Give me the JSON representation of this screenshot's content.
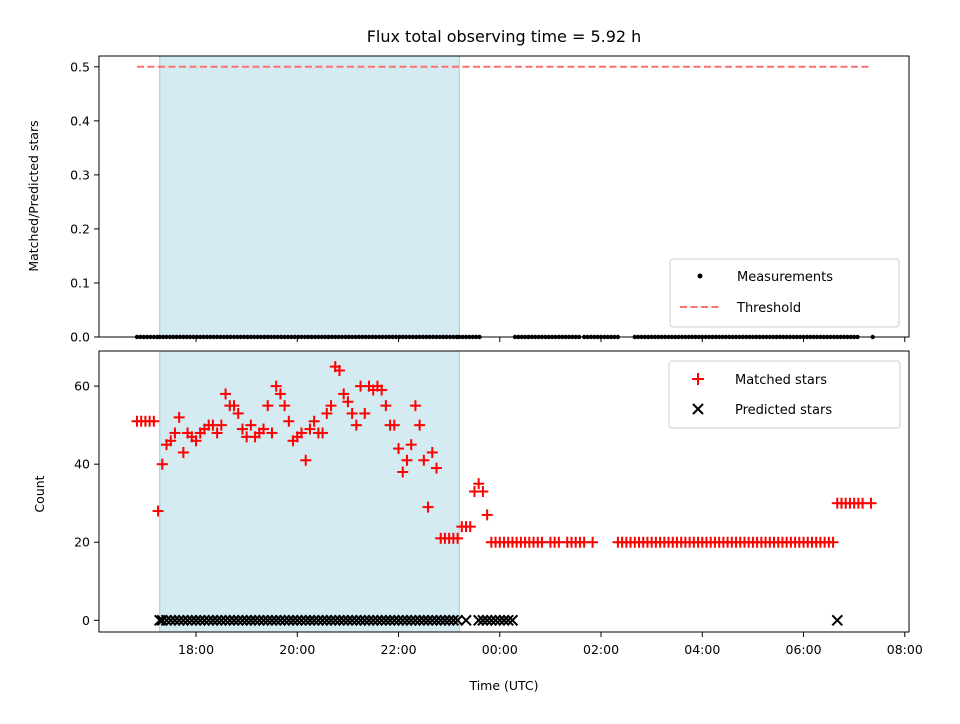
{
  "chart_data": [
    {
      "type": "scatter",
      "title": "Flux total observing time = 5.92 h",
      "xlabel": "",
      "ylabel": "Matched/Predicted stars",
      "ylim": [
        0.0,
        0.52
      ],
      "xlim": [
        "16:05",
        "08:05"
      ],
      "yticks": [
        "0.0",
        "0.1",
        "0.2",
        "0.3",
        "0.4",
        "0.5"
      ],
      "shaded_span": [
        "17:17",
        "23:12"
      ],
      "threshold": 0.5,
      "legend_position": "lower right",
      "legend": [
        "Measurements",
        "Threshold"
      ],
      "series": [
        {
          "name": "Measurements",
          "color": "#000000",
          "marker": "dot",
          "y": 0.0,
          "x_segments": [
            [
              "16:50",
              "17:17"
            ],
            [
              "17:17",
              "23:12"
            ],
            [
              "23:12",
              "23:37"
            ],
            [
              "00:18",
              "01:35"
            ],
            [
              "01:40",
              "02:20"
            ],
            [
              "02:40",
              "06:38"
            ],
            [
              "06:40",
              "07:05"
            ],
            [
              "07:22",
              "07:22"
            ]
          ]
        },
        {
          "name": "Threshold",
          "color": "#ff6f6f",
          "style": "dashed",
          "x": [
            "16:50",
            "07:20"
          ],
          "y": [
            0.5,
            0.5
          ]
        }
      ]
    },
    {
      "type": "scatter",
      "title": "",
      "xlabel": "Time (UTC)",
      "ylabel": "Count",
      "ylim": [
        -3,
        69
      ],
      "yticks": [
        "0",
        "20",
        "40",
        "60"
      ],
      "xticks": [
        "18:00",
        "20:00",
        "22:00",
        "00:00",
        "02:00",
        "04:00",
        "06:00",
        "08:00"
      ],
      "shaded_span": [
        "17:17",
        "23:12"
      ],
      "legend_position": "upper right",
      "legend": [
        "Matched stars",
        "Predicted stars"
      ],
      "series": [
        {
          "name": "Matched stars",
          "color": "#ff0000",
          "marker": "+",
          "points": [
            [
              "16:50",
              51
            ],
            [
              "16:55",
              51
            ],
            [
              "17:00",
              51
            ],
            [
              "17:05",
              51
            ],
            [
              "17:10",
              51
            ],
            [
              "17:15",
              28
            ],
            [
              "17:20",
              40
            ],
            [
              "17:25",
              45
            ],
            [
              "17:30",
              46
            ],
            [
              "17:35",
              48
            ],
            [
              "17:40",
              52
            ],
            [
              "17:45",
              43
            ],
            [
              "17:50",
              48
            ],
            [
              "17:55",
              47
            ],
            [
              "18:00",
              46
            ],
            [
              "18:05",
              48
            ],
            [
              "18:10",
              49
            ],
            [
              "18:15",
              50
            ],
            [
              "18:20",
              50
            ],
            [
              "18:25",
              48
            ],
            [
              "18:30",
              50
            ],
            [
              "18:35",
              58
            ],
            [
              "18:40",
              55
            ],
            [
              "18:45",
              55
            ],
            [
              "18:50",
              53
            ],
            [
              "18:55",
              49
            ],
            [
              "19:00",
              47
            ],
            [
              "19:05",
              50
            ],
            [
              "19:10",
              47
            ],
            [
              "19:15",
              48
            ],
            [
              "19:20",
              49
            ],
            [
              "19:25",
              55
            ],
            [
              "19:30",
              48
            ],
            [
              "19:35",
              60
            ],
            [
              "19:40",
              58
            ],
            [
              "19:45",
              55
            ],
            [
              "19:50",
              51
            ],
            [
              "19:55",
              46
            ],
            [
              "20:00",
              47
            ],
            [
              "20:05",
              48
            ],
            [
              "20:10",
              41
            ],
            [
              "20:15",
              49
            ],
            [
              "20:20",
              51
            ],
            [
              "20:25",
              48
            ],
            [
              "20:30",
              48
            ],
            [
              "20:35",
              53
            ],
            [
              "20:40",
              55
            ],
            [
              "20:45",
              65
            ],
            [
              "20:50",
              64
            ],
            [
              "20:55",
              58
            ],
            [
              "21:00",
              56
            ],
            [
              "21:05",
              53
            ],
            [
              "21:10",
              50
            ],
            [
              "21:15",
              60
            ],
            [
              "21:20",
              53
            ],
            [
              "21:25",
              60
            ],
            [
              "21:30",
              59
            ],
            [
              "21:35",
              60
            ],
            [
              "21:40",
              59
            ],
            [
              "21:45",
              55
            ],
            [
              "21:50",
              50
            ],
            [
              "21:55",
              50
            ],
            [
              "22:00",
              44
            ],
            [
              "22:05",
              38
            ],
            [
              "22:10",
              41
            ],
            [
              "22:15",
              45
            ],
            [
              "22:20",
              55
            ],
            [
              "22:25",
              50
            ],
            [
              "22:30",
              41
            ],
            [
              "22:35",
              29
            ],
            [
              "22:40",
              43
            ],
            [
              "22:45",
              39
            ],
            [
              "22:50",
              21
            ],
            [
              "22:55",
              21
            ],
            [
              "23:00",
              21
            ],
            [
              "23:05",
              21
            ],
            [
              "23:10",
              21
            ],
            [
              "23:15",
              24
            ],
            [
              "23:20",
              24
            ],
            [
              "23:25",
              24
            ],
            [
              "23:30",
              33
            ],
            [
              "23:35",
              35
            ],
            [
              "23:40",
              33
            ],
            [
              "23:45",
              27
            ],
            [
              "23:50",
              20
            ],
            [
              "23:55",
              20
            ],
            [
              "00:00",
              20
            ],
            [
              "00:05",
              20
            ],
            [
              "00:10",
              20
            ],
            [
              "00:15",
              20
            ],
            [
              "00:20",
              20
            ],
            [
              "00:25",
              20
            ],
            [
              "00:30",
              20
            ],
            [
              "00:35",
              20
            ],
            [
              "00:40",
              20
            ],
            [
              "00:45",
              20
            ],
            [
              "00:50",
              20
            ],
            [
              "01:00",
              20
            ],
            [
              "01:05",
              20
            ],
            [
              "01:10",
              20
            ],
            [
              "01:20",
              20
            ],
            [
              "01:25",
              20
            ],
            [
              "01:30",
              20
            ],
            [
              "01:35",
              20
            ],
            [
              "01:40",
              20
            ],
            [
              "01:50",
              20
            ],
            [
              "02:20",
              20
            ],
            [
              "02:25",
              20
            ],
            [
              "02:30",
              20
            ],
            [
              "02:35",
              20
            ],
            [
              "02:40",
              20
            ],
            [
              "02:45",
              20
            ],
            [
              "02:50",
              20
            ],
            [
              "02:55",
              20
            ],
            [
              "03:00",
              20
            ],
            [
              "03:05",
              20
            ],
            [
              "03:10",
              20
            ],
            [
              "03:15",
              20
            ],
            [
              "03:20",
              20
            ],
            [
              "03:25",
              20
            ],
            [
              "03:30",
              20
            ],
            [
              "03:35",
              20
            ],
            [
              "03:40",
              20
            ],
            [
              "03:45",
              20
            ],
            [
              "03:50",
              20
            ],
            [
              "03:55",
              20
            ],
            [
              "04:00",
              20
            ],
            [
              "04:05",
              20
            ],
            [
              "04:10",
              20
            ],
            [
              "04:15",
              20
            ],
            [
              "04:20",
              20
            ],
            [
              "04:25",
              20
            ],
            [
              "04:30",
              20
            ],
            [
              "04:35",
              20
            ],
            [
              "04:40",
              20
            ],
            [
              "04:45",
              20
            ],
            [
              "04:50",
              20
            ],
            [
              "04:55",
              20
            ],
            [
              "05:00",
              20
            ],
            [
              "05:05",
              20
            ],
            [
              "05:10",
              20
            ],
            [
              "05:15",
              20
            ],
            [
              "05:20",
              20
            ],
            [
              "05:25",
              20
            ],
            [
              "05:30",
              20
            ],
            [
              "05:35",
              20
            ],
            [
              "05:40",
              20
            ],
            [
              "05:45",
              20
            ],
            [
              "05:50",
              20
            ],
            [
              "05:55",
              20
            ],
            [
              "06:00",
              20
            ],
            [
              "06:05",
              20
            ],
            [
              "06:10",
              20
            ],
            [
              "06:15",
              20
            ],
            [
              "06:20",
              20
            ],
            [
              "06:25",
              20
            ],
            [
              "06:30",
              20
            ],
            [
              "06:35",
              20
            ],
            [
              "06:40",
              30
            ],
            [
              "06:45",
              30
            ],
            [
              "06:50",
              30
            ],
            [
              "06:55",
              30
            ],
            [
              "07:00",
              30
            ],
            [
              "07:05",
              30
            ],
            [
              "07:10",
              30
            ],
            [
              "07:20",
              30
            ]
          ]
        },
        {
          "name": "Predicted stars",
          "color": "#000000",
          "marker": "x",
          "points": [
            [
              "17:17",
              0
            ],
            [
              "17:20",
              0
            ],
            [
              "17:25",
              0
            ],
            [
              "17:30",
              0
            ],
            [
              "17:35",
              0
            ],
            [
              "17:40",
              0
            ],
            [
              "17:45",
              0
            ],
            [
              "17:50",
              0
            ],
            [
              "17:55",
              0
            ],
            [
              "18:00",
              0
            ],
            [
              "18:05",
              0
            ],
            [
              "18:10",
              0
            ],
            [
              "18:15",
              0
            ],
            [
              "18:20",
              0
            ],
            [
              "18:25",
              0
            ],
            [
              "18:30",
              0
            ],
            [
              "18:35",
              0
            ],
            [
              "18:40",
              0
            ],
            [
              "18:45",
              0
            ],
            [
              "18:50",
              0
            ],
            [
              "18:55",
              0
            ],
            [
              "19:00",
              0
            ],
            [
              "19:05",
              0
            ],
            [
              "19:10",
              0
            ],
            [
              "19:15",
              0
            ],
            [
              "19:20",
              0
            ],
            [
              "19:25",
              0
            ],
            [
              "19:30",
              0
            ],
            [
              "19:35",
              0
            ],
            [
              "19:40",
              0
            ],
            [
              "19:45",
              0
            ],
            [
              "19:50",
              0
            ],
            [
              "19:55",
              0
            ],
            [
              "20:00",
              0
            ],
            [
              "20:05",
              0
            ],
            [
              "20:10",
              0
            ],
            [
              "20:15",
              0
            ],
            [
              "20:20",
              0
            ],
            [
              "20:25",
              0
            ],
            [
              "20:30",
              0
            ],
            [
              "20:35",
              0
            ],
            [
              "20:40",
              0
            ],
            [
              "20:45",
              0
            ],
            [
              "20:50",
              0
            ],
            [
              "20:55",
              0
            ],
            [
              "21:00",
              0
            ],
            [
              "21:05",
              0
            ],
            [
              "21:10",
              0
            ],
            [
              "21:15",
              0
            ],
            [
              "21:20",
              0
            ],
            [
              "21:25",
              0
            ],
            [
              "21:30",
              0
            ],
            [
              "21:35",
              0
            ],
            [
              "21:40",
              0
            ],
            [
              "21:45",
              0
            ],
            [
              "21:50",
              0
            ],
            [
              "21:55",
              0
            ],
            [
              "22:00",
              0
            ],
            [
              "22:05",
              0
            ],
            [
              "22:10",
              0
            ],
            [
              "22:15",
              0
            ],
            [
              "22:20",
              0
            ],
            [
              "22:25",
              0
            ],
            [
              "22:30",
              0
            ],
            [
              "22:35",
              0
            ],
            [
              "22:40",
              0
            ],
            [
              "22:45",
              0
            ],
            [
              "22:50",
              0
            ],
            [
              "22:55",
              0
            ],
            [
              "23:00",
              0
            ],
            [
              "23:05",
              0
            ],
            [
              "23:10",
              0
            ],
            [
              "23:20",
              0
            ],
            [
              "23:35",
              0
            ],
            [
              "23:40",
              0
            ],
            [
              "23:45",
              0
            ],
            [
              "23:50",
              0
            ],
            [
              "23:55",
              0
            ],
            [
              "00:00",
              0
            ],
            [
              "00:05",
              0
            ],
            [
              "00:10",
              0
            ],
            [
              "00:15",
              0
            ],
            [
              "06:40",
              0
            ]
          ]
        }
      ]
    }
  ]
}
